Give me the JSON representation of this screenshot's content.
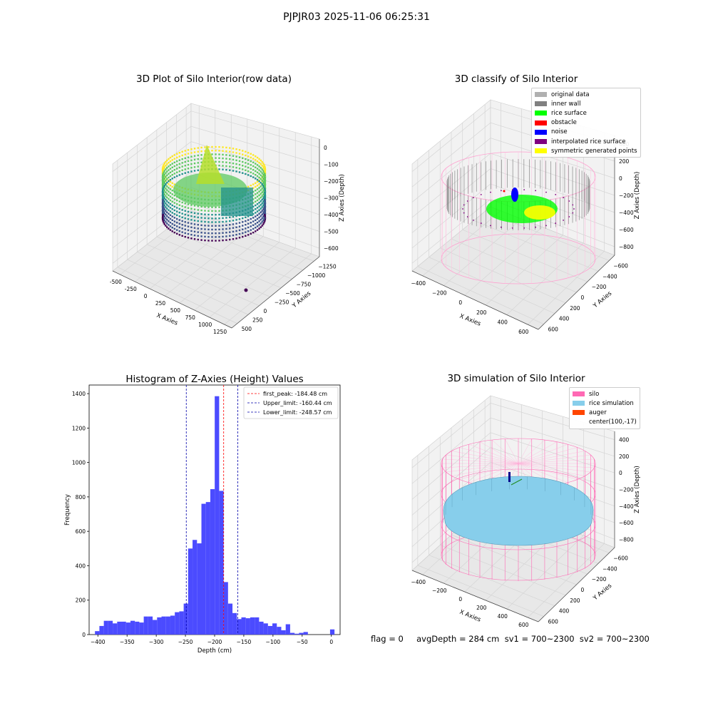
{
  "suptitle": "PJPJR03 2025-11-06 06:25:31",
  "footer": {
    "text": "flag = 0     avgDepth = 284 cm  sv1 = 700~2300  sv2 = 700~2300"
  },
  "panels": {
    "raw": {
      "title": "3D Plot of Silo Interior(row data)",
      "xlabel": "X Axies",
      "ylabel": "Y Axies",
      "zlabel": "Z Axies (Depth)",
      "xticks": [
        "-500",
        "-250",
        "0",
        "250",
        "500",
        "750",
        "1000",
        "1250"
      ],
      "yticks": [
        "500",
        "250",
        "0",
        "−250",
        "−500",
        "−750",
        "−1000",
        "−1250"
      ],
      "zticks": [
        "0",
        "−100",
        "−200",
        "−300",
        "−400",
        "−500",
        "−600"
      ]
    },
    "classify": {
      "title": "3D classify of Silo Interior",
      "xlabel": "X Axies",
      "ylabel": "Y Axies",
      "zlabel": "Z Axies (Depth)",
      "xticks": [
        "−400",
        "−200",
        "0",
        "200",
        "400",
        "600"
      ],
      "yticks": [
        "600",
        "400",
        "200",
        "0",
        "−200",
        "−400",
        "−600"
      ],
      "zticks": [
        "400",
        "200",
        "0",
        "−200",
        "−400",
        "−600",
        "−800"
      ],
      "legend": [
        {
          "label": "original data",
          "color": "#b0b0b0"
        },
        {
          "label": "inner wall",
          "color": "#808080"
        },
        {
          "label": "rice surface",
          "color": "#00ff00"
        },
        {
          "label": "obstacle",
          "color": "#ff0000"
        },
        {
          "label": "noise",
          "color": "#0000ff"
        },
        {
          "label": "interpolated rice surface",
          "color": "#800080"
        },
        {
          "label": "symmetric generated points",
          "color": "#ffff00"
        }
      ]
    },
    "simulation": {
      "title": "3D simulation of Silo Interior",
      "xlabel": "X Axies",
      "ylabel": "Y Axies",
      "zlabel": "Z Axies (Depth)",
      "xticks": [
        "−400",
        "−200",
        "0",
        "200",
        "400",
        "600"
      ],
      "yticks": [
        "600",
        "400",
        "200",
        "0",
        "−200",
        "−400",
        "−600"
      ],
      "zticks": [
        "400",
        "200",
        "0",
        "−200",
        "−400",
        "−600",
        "−800"
      ],
      "legend": [
        {
          "label": "silo",
          "color": "#ff69b4"
        },
        {
          "label": "rice simulation",
          "color": "#87ceeb"
        },
        {
          "label": "auger",
          "color": "#ff4500"
        },
        {
          "label": "center(100,-17)",
          "color": ""
        }
      ]
    }
  },
  "chart_data": [
    {
      "type": "scatter",
      "title": "3D Plot of Silo Interior(row data)",
      "xlabel": "X Axies",
      "ylabel": "Y Axies",
      "zlabel": "Z Axies (Depth)",
      "xlim": [
        -600,
        1300
      ],
      "ylim": [
        -1300,
        600
      ],
      "zlim": [
        -650,
        20
      ],
      "colormap": "viridis"
    },
    {
      "type": "scatter",
      "title": "3D classify of Silo Interior",
      "xlabel": "X Axies",
      "ylabel": "Y Axies",
      "zlabel": "Z Axies (Depth)",
      "xlim": [
        -500,
        700
      ],
      "ylim": [
        -650,
        650
      ],
      "zlim": [
        -900,
        400
      ],
      "legend_position": "top-right"
    },
    {
      "type": "histogram",
      "title": "Histogram of Z-Axies (Height) Values",
      "xlabel": "Depth (cm)",
      "ylabel": "Frequency",
      "xlim": [
        -415,
        15
      ],
      "ylim": [
        0,
        1450
      ],
      "xticks": [
        -400,
        -350,
        -300,
        -250,
        -200,
        -150,
        -100,
        -50,
        0
      ],
      "yticks": [
        0,
        200,
        400,
        600,
        800,
        1000,
        1200,
        1400
      ],
      "bar_color": "#4b4bff",
      "bin_width": 7.6,
      "bins_start": -405,
      "values": [
        20,
        50,
        80,
        80,
        65,
        75,
        75,
        70,
        80,
        75,
        70,
        105,
        105,
        85,
        100,
        105,
        105,
        110,
        130,
        135,
        180,
        500,
        550,
        530,
        760,
        770,
        845,
        1385,
        835,
        305,
        180,
        125,
        90,
        100,
        95,
        100,
        100,
        75,
        65,
        50,
        65,
        45,
        25,
        60,
        10,
        5,
        10,
        15,
        0,
        0,
        0,
        0,
        0,
        30
      ],
      "vlines": [
        {
          "label": "first_peak: -184.48 cm",
          "x": -184.48,
          "color": "#ff0000"
        },
        {
          "label": "Upper_limit: -160.44 cm",
          "x": -160.44,
          "color": "#0000aa"
        },
        {
          "label": "Lower_limit: -248.57 cm",
          "x": -248.57,
          "color": "#0000aa"
        }
      ],
      "legend_position": "top-right"
    },
    {
      "type": "surface",
      "title": "3D simulation of Silo Interior",
      "xlabel": "X Axies",
      "ylabel": "Y Axies",
      "zlabel": "Z Axies (Depth)",
      "xlim": [
        -500,
        700
      ],
      "ylim": [
        -650,
        650
      ],
      "zlim": [
        -900,
        400
      ],
      "legend_position": "top-right"
    }
  ]
}
